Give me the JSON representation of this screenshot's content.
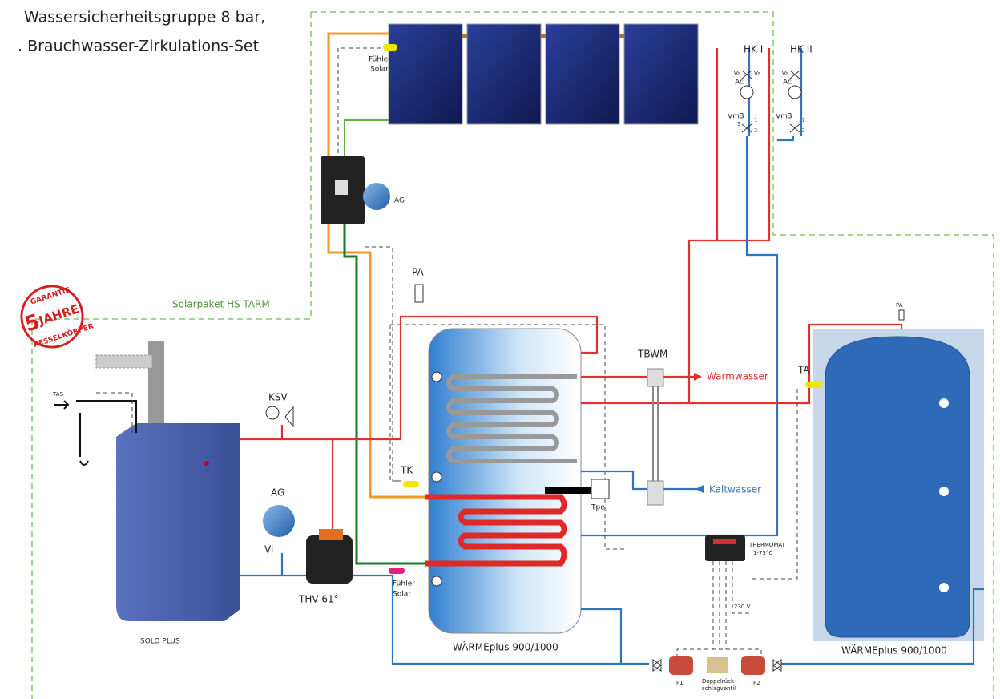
{
  "header": {
    "lines": [
      "Wassersicherheitsgruppe 8 bar,",
      ". Brauchwasser-Zirkulations-Set"
    ]
  },
  "solar": {
    "sensor_label": [
      "Fühler",
      "Solar"
    ],
    "expansion_vessel": "AG",
    "package": "Solarpaket HS TARM"
  },
  "heating_circuits": [
    {
      "label": "HK I",
      "valve_left": "Va",
      "valve_right": "Va",
      "pump": "Ac",
      "mixer": "Vm3",
      "ports": [
        "3",
        "1",
        "2"
      ]
    },
    {
      "label": "HK II",
      "valve_left": "Va",
      "pump": "Ac",
      "mixer": "Vm3",
      "ports": [
        "1",
        "2"
      ]
    }
  ],
  "badge": {
    "top": "GARANTIE",
    "number": "5",
    "unit": "JAHRE",
    "bottom": "KESSELKÖRPER"
  },
  "boiler": {
    "name": "SOLO PLUS",
    "tas": "TAS",
    "ksv": "KSV"
  },
  "charging": {
    "expansion_vessel": "AG",
    "valve": "Vi",
    "thermo_valve": "THV 61°"
  },
  "storage": {
    "pa": "PA",
    "tk": "TK",
    "tpe": "Tpe",
    "sensor_label": [
      "Fühler",
      "Solar"
    ],
    "name": "WÄRMEplus 900/1000"
  },
  "mixing": {
    "name": "TBWM",
    "hot": "Warmwasser",
    "cold": "Kaltwasser"
  },
  "buffer": {
    "ta": "TA",
    "pa": "PA",
    "name": "WÄRMEplus 900/1000"
  },
  "controller": {
    "lines": [
      "THERMOMAT",
      "1-75°C"
    ],
    "power": "230 V"
  },
  "pumps": {
    "p1": "P1",
    "check_valve": [
      "Doppelrück-",
      "schlagventil"
    ],
    "p2": "P2"
  }
}
